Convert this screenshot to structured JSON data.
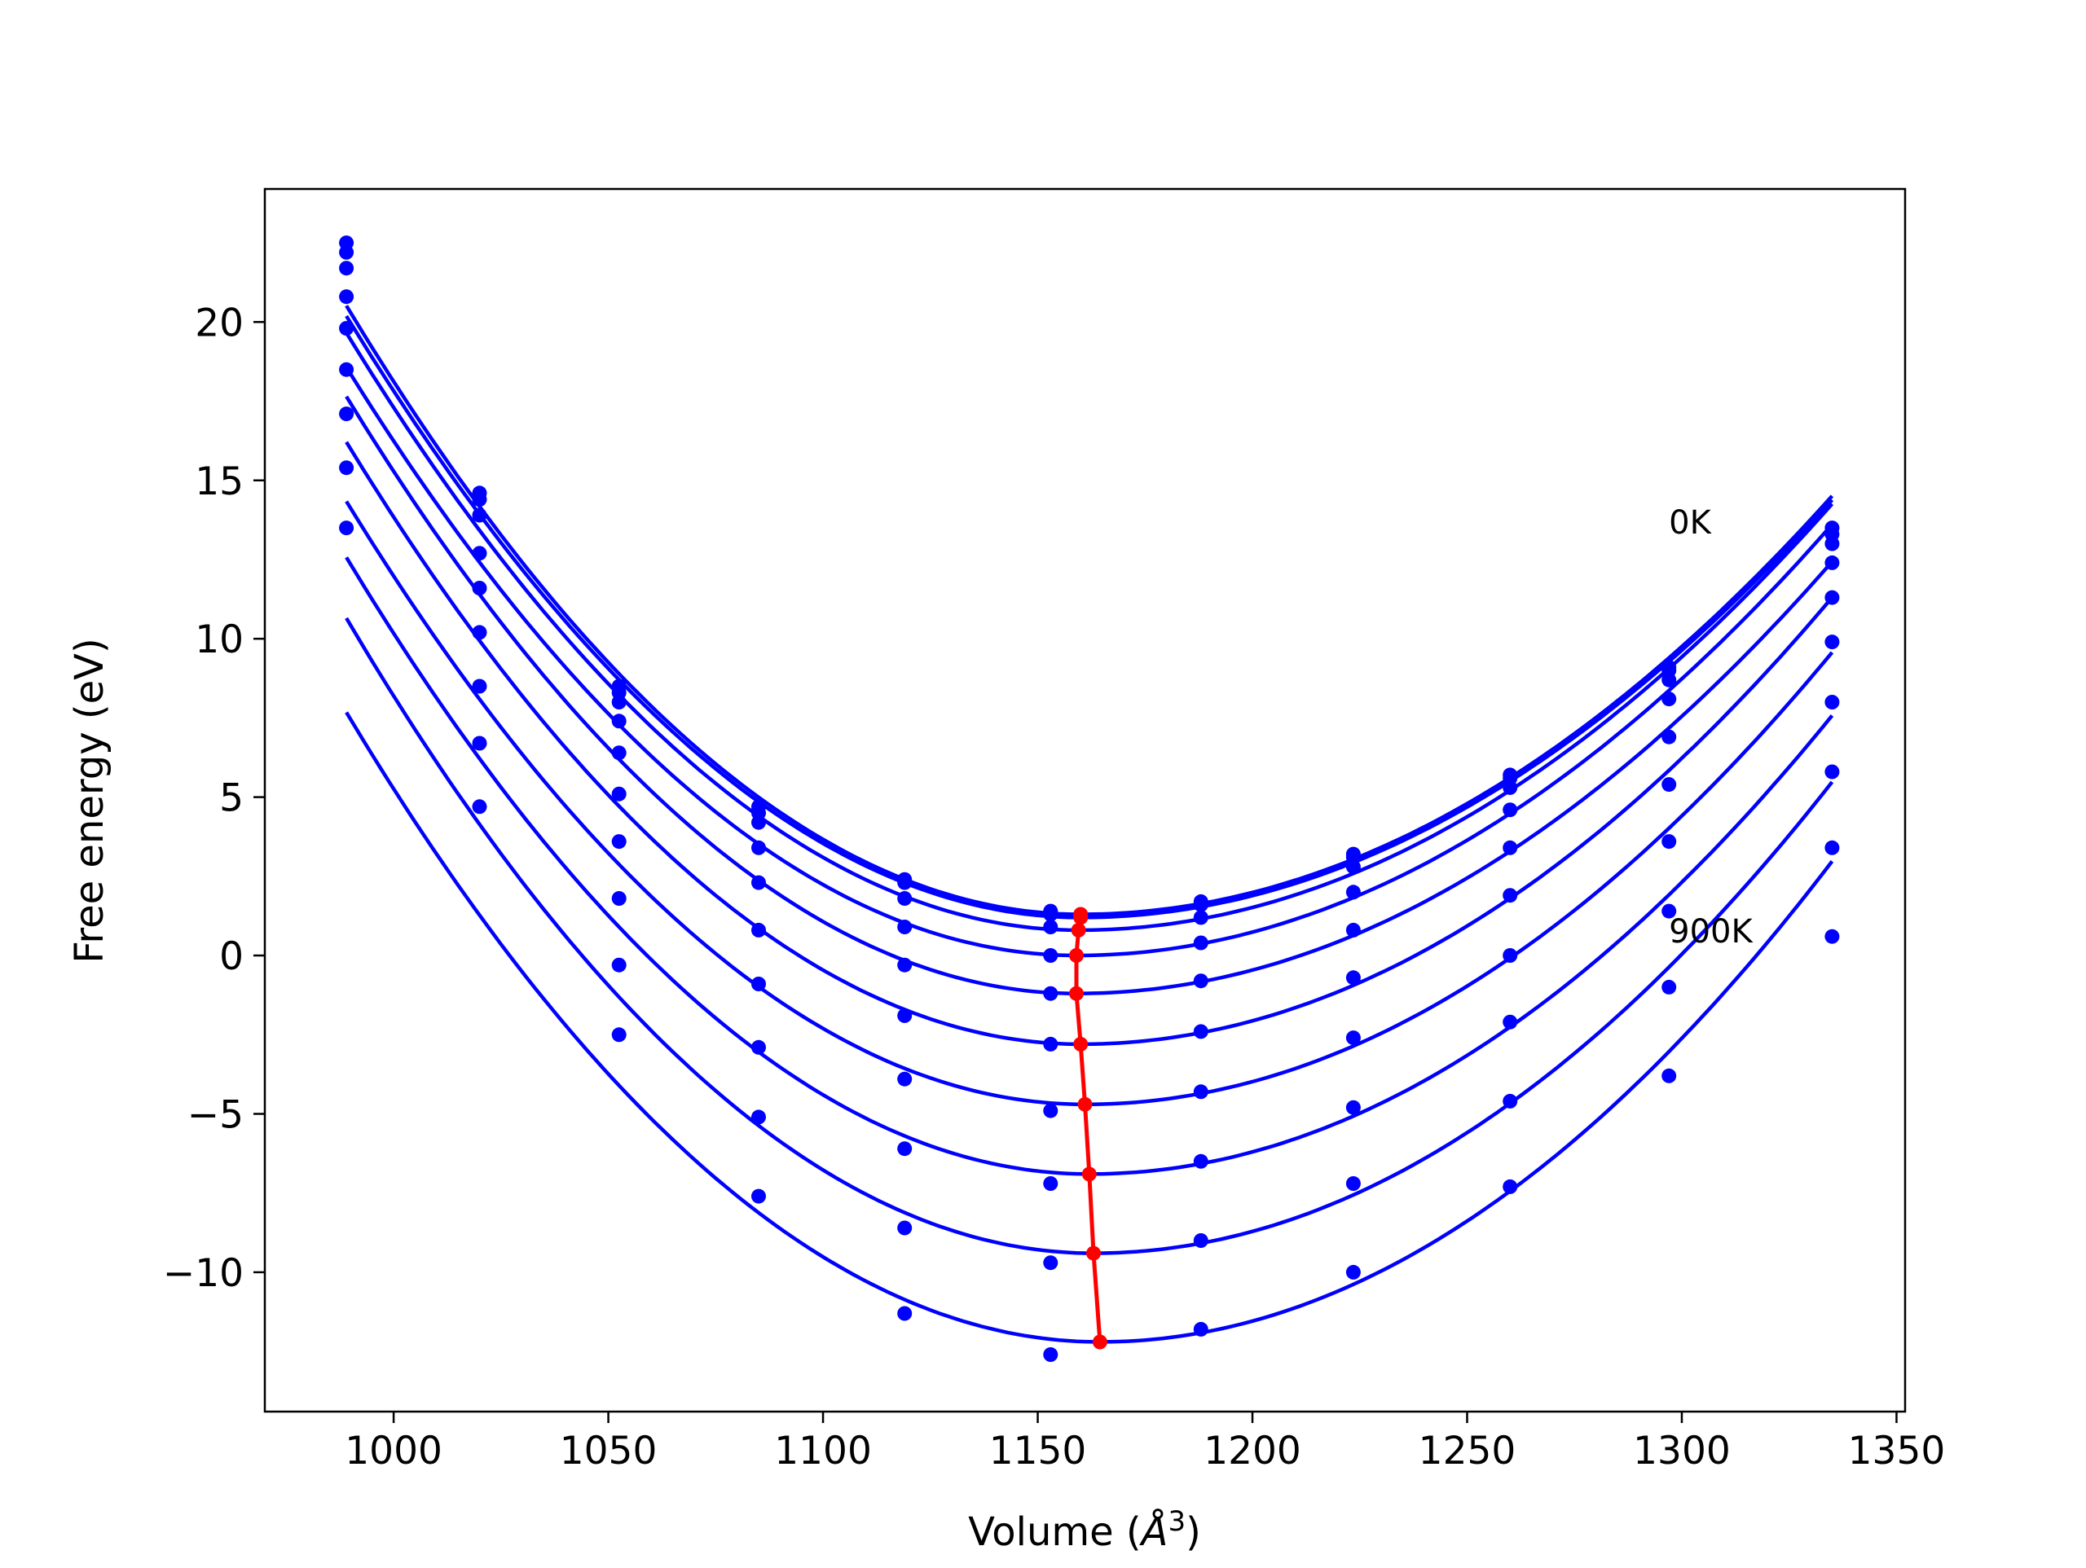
{
  "chart_data": {
    "type": "line",
    "xlabel": "Volume ($\\AA^3$)",
    "xlabel_prefix": "Volume (",
    "xlabel_symbol": "Å",
    "xlabel_exponent": "3",
    "xlabel_suffix": ")",
    "ylabel": "Free energy (eV)",
    "xlim": [
      970,
      1352
    ],
    "ylim": [
      -14.4,
      24.2
    ],
    "grid": false,
    "xticks": [
      1000,
      1050,
      1100,
      1150,
      1200,
      1250,
      1300,
      1350
    ],
    "xtick_labels": [
      "1000",
      "1050",
      "1100",
      "1150",
      "1200",
      "1250",
      "1300",
      "1350"
    ],
    "yticks": [
      -10,
      -5,
      0,
      5,
      10,
      15,
      20
    ],
    "ytick_labels": [
      "−10",
      "−5",
      "0",
      "5",
      "10",
      "15",
      "20"
    ],
    "annotations": [
      {
        "text": "0K",
        "x": 1297,
        "y": 13.6
      },
      {
        "text": "900K",
        "x": 1297,
        "y": 0.7
      }
    ],
    "x_volumes": [
      989,
      1020,
      1052.5,
      1085,
      1119,
      1153,
      1188,
      1223.5,
      1260,
      1297,
      1335
    ],
    "series": [
      {
        "energies": [
          22.5,
          14.6,
          8.5,
          4.7,
          2.4,
          1.4,
          1.7,
          3.2,
          5.7,
          9.1,
          13.5
        ]
      },
      {
        "energies": [
          22.2,
          14.4,
          8.3,
          4.5,
          2.3,
          1.3,
          1.6,
          3.1,
          5.6,
          9.0,
          13.3
        ]
      },
      {
        "energies": [
          21.7,
          13.9,
          8.0,
          4.2,
          1.8,
          0.9,
          1.2,
          2.8,
          5.3,
          8.7,
          13.0
        ]
      },
      {
        "energies": [
          20.8,
          12.7,
          7.4,
          3.4,
          0.9,
          0.0,
          0.4,
          2.0,
          4.6,
          8.1,
          12.4
        ]
      },
      {
        "energies": [
          19.8,
          11.6,
          6.4,
          2.3,
          -0.3,
          -1.2,
          -0.8,
          0.8,
          3.4,
          6.9,
          11.3
        ]
      },
      {
        "energies": [
          18.5,
          10.2,
          5.1,
          0.8,
          -1.9,
          -2.8,
          -2.4,
          -0.7,
          1.9,
          5.4,
          9.9
        ]
      },
      {
        "energies": [
          17.1,
          8.5,
          3.6,
          -0.9,
          -3.9,
          -4.9,
          -4.3,
          -2.6,
          0.0,
          3.6,
          8.0
        ]
      },
      {
        "energies": [
          15.4,
          6.7,
          1.8,
          -2.9,
          -6.1,
          -7.2,
          -6.5,
          -4.8,
          -2.1,
          1.4,
          5.8
        ]
      },
      {
        "energies": [
          13.5,
          4.7,
          -0.3,
          -5.1,
          -8.6,
          -9.7,
          -9.0,
          -7.2,
          -4.6,
          -1.0,
          3.4
        ]
      },
      {
        "energies": [
          null,
          null,
          -2.5,
          -7.6,
          -11.3,
          -12.6,
          -11.8,
          -10.0,
          -7.3,
          -3.8,
          0.6
        ]
      }
    ],
    "fit_curves": [
      {
        "min_volume": 1160.0,
        "min_energy": 1.3
      },
      {
        "min_volume": 1160.0,
        "min_energy": 1.2
      },
      {
        "min_volume": 1159.5,
        "min_energy": 0.8
      },
      {
        "min_volume": 1159.0,
        "min_energy": 0.0
      },
      {
        "min_volume": 1159.0,
        "min_energy": -1.2
      },
      {
        "min_volume": 1160.0,
        "min_energy": -2.8
      },
      {
        "min_volume": 1161.0,
        "min_energy": -4.7
      },
      {
        "min_volume": 1162.0,
        "min_energy": -6.9
      },
      {
        "min_volume": 1163.0,
        "min_energy": -9.4
      },
      {
        "min_volume": 1164.5,
        "min_energy": -12.2
      }
    ],
    "equilibrium_line": {
      "volumes": [
        1160.0,
        1160.0,
        1159.5,
        1159.0,
        1159.0,
        1160.0,
        1161.0,
        1162.0,
        1163.0,
        1164.5
      ],
      "energies": [
        1.3,
        1.2,
        0.8,
        0.0,
        -1.2,
        -2.8,
        -4.7,
        -6.9,
        -9.4,
        -12.2
      ]
    },
    "colors": {
      "series": "#0000ff",
      "equilibrium": "#ff0000",
      "axes": "#000000"
    }
  }
}
